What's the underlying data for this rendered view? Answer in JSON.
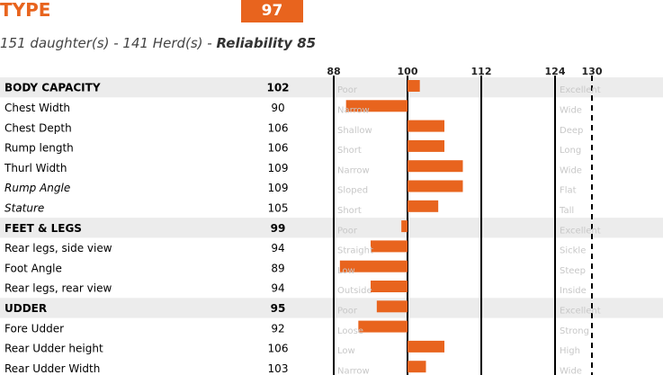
{
  "header": {
    "title": "TYPE",
    "score": "97",
    "daughters": "151 daughter(s)",
    "herds": "141 Herd(s)",
    "reliability": "Reliability 85"
  },
  "chart_data": {
    "type": "bar",
    "orientation": "horizontal",
    "axis_ticks": [
      88,
      100,
      112,
      124,
      130
    ],
    "center": 100,
    "colors": {
      "bar": "#e8641e",
      "section_bg": "#ececec",
      "scale_label": "#c8c8c8"
    },
    "rows": [
      {
        "label": "BODY CAPACITY",
        "value": 102,
        "low": "Poor",
        "high": "Excellent",
        "section": true,
        "italic": false
      },
      {
        "label": "Chest Width",
        "value": 90,
        "low": "Narrow",
        "high": "Wide",
        "section": false,
        "italic": false
      },
      {
        "label": "Chest Depth",
        "value": 106,
        "low": "Shallow",
        "high": "Deep",
        "section": false,
        "italic": false
      },
      {
        "label": "Rump length",
        "value": 106,
        "low": "Short",
        "high": "Long",
        "section": false,
        "italic": false
      },
      {
        "label": "Thurl Width",
        "value": 109,
        "low": "Narrow",
        "high": "Wide",
        "section": false,
        "italic": false
      },
      {
        "label": "Rump Angle",
        "value": 109,
        "low": "Sloped",
        "high": "Flat",
        "section": false,
        "italic": true
      },
      {
        "label": "Stature",
        "value": 105,
        "low": "Short",
        "high": "Tall",
        "section": false,
        "italic": true
      },
      {
        "label": "FEET & LEGS",
        "value": 99,
        "low": "Poor",
        "high": "Excellent",
        "section": true,
        "italic": false
      },
      {
        "label": "Rear legs, side view",
        "value": 94,
        "low": "Straight",
        "high": "Sickle",
        "section": false,
        "italic": false
      },
      {
        "label": "Foot Angle",
        "value": 89,
        "low": "Low",
        "high": "Steep",
        "section": false,
        "italic": false
      },
      {
        "label": "Rear legs, rear view",
        "value": 94,
        "low": "Outside",
        "high": "Inside",
        "section": false,
        "italic": false
      },
      {
        "label": "UDDER",
        "value": 95,
        "low": "Poor",
        "high": "Excellent",
        "section": true,
        "italic": false
      },
      {
        "label": "Fore Udder",
        "value": 92,
        "low": "Loose",
        "high": "Strong",
        "section": false,
        "italic": false
      },
      {
        "label": "Rear Udder height",
        "value": 106,
        "low": "Low",
        "high": "High",
        "section": false,
        "italic": false
      },
      {
        "label": "Rear Udder Width",
        "value": 103,
        "low": "Narrow",
        "high": "Wide",
        "section": false,
        "italic": false
      }
    ]
  }
}
